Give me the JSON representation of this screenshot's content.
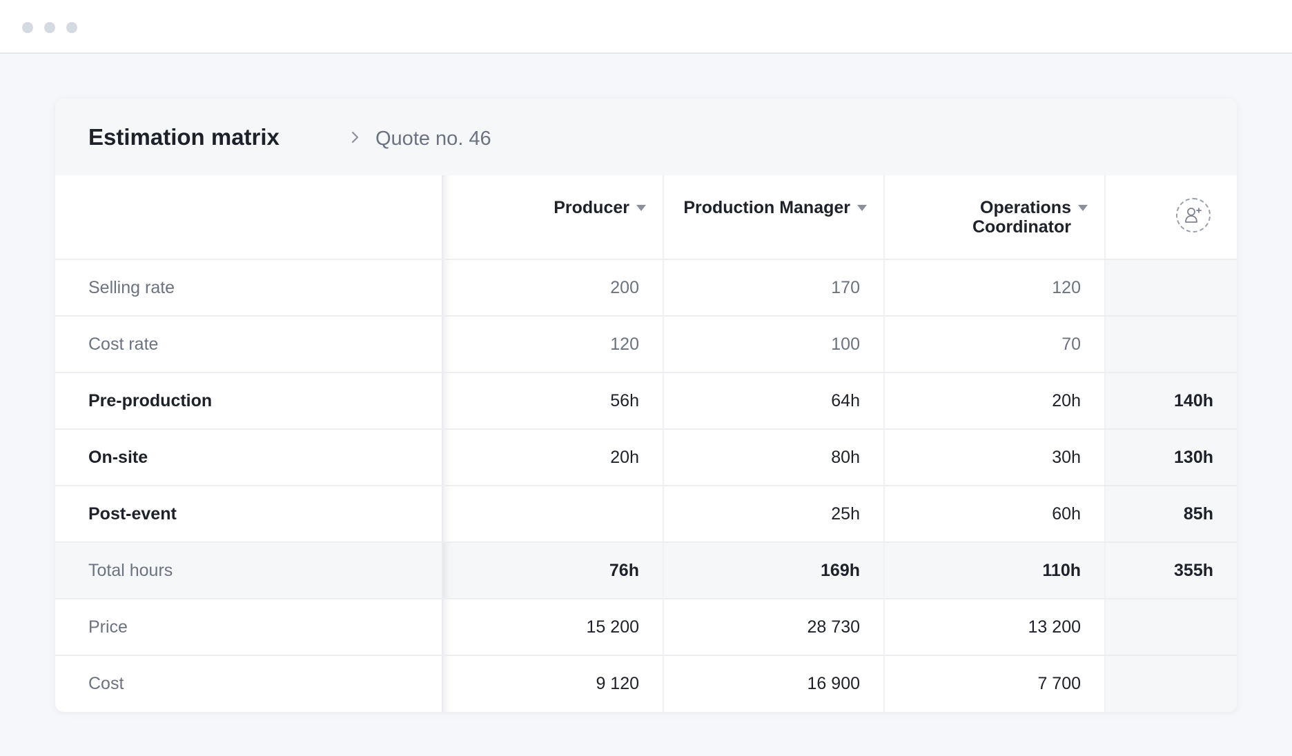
{
  "window": {
    "controls": [
      "close",
      "minimize",
      "maximize"
    ]
  },
  "breadcrumb": {
    "title": "Estimation matrix",
    "separator_icon": "chevron-right-icon",
    "current": "Quote no. 46"
  },
  "columns": [
    {
      "label": "Producer",
      "icon": "caret-down-icon"
    },
    {
      "label": "Production Manager",
      "icon": "caret-down-icon"
    },
    {
      "label_line1": "Operations",
      "label_line2": "Coordinator",
      "icon": "caret-down-icon"
    }
  ],
  "add_column_icon": "add-user-icon",
  "rows": {
    "selling_rate": {
      "label": "Selling rate",
      "values": [
        "200",
        "170",
        "120"
      ],
      "total": ""
    },
    "cost_rate": {
      "label": "Cost rate",
      "values": [
        "120",
        "100",
        "70"
      ],
      "total": ""
    },
    "pre_production": {
      "label": "Pre-production",
      "values": [
        "56h",
        "64h",
        "20h"
      ],
      "total": "140h"
    },
    "on_site": {
      "label": "On-site",
      "values": [
        "20h",
        "80h",
        "30h"
      ],
      "total": "130h"
    },
    "post_event": {
      "label": "Post-event",
      "values": [
        "",
        "25h",
        "60h"
      ],
      "total": "85h"
    },
    "total_hours": {
      "label": "Total hours",
      "values": [
        "76h",
        "169h",
        "110h"
      ],
      "total": "355h"
    },
    "price": {
      "label": "Price",
      "values": [
        "15 200",
        "28 730",
        "13 200"
      ],
      "total": ""
    },
    "cost": {
      "label": "Cost",
      "values": [
        "9 120",
        "16 900",
        "7 700"
      ],
      "total": ""
    }
  },
  "colors": {
    "background": "#f5f7fa",
    "card": "#ffffff",
    "muted_text": "#6b7280",
    "text": "#1d2129",
    "totals_bg": "#f6f7f9"
  }
}
